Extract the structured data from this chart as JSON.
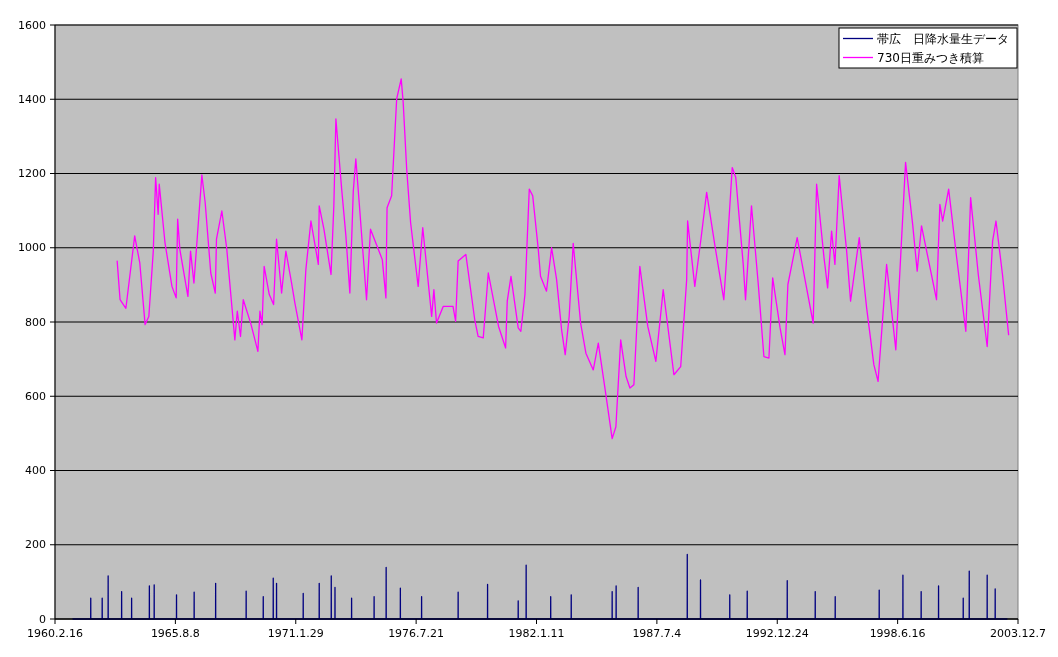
{
  "chart_data": {
    "type": "line",
    "xlim": [
      "1960-02-16",
      "2003-12-07"
    ],
    "xticks": [
      {
        "value": "1960-02-16",
        "label": "1960.2.16"
      },
      {
        "value": "1965-08-08",
        "label": "1965.8.8"
      },
      {
        "value": "1971-01-29",
        "label": "1971.1.29"
      },
      {
        "value": "1976-07-21",
        "label": "1976.7.21"
      },
      {
        "value": "1982-01-11",
        "label": "1982.1.11"
      },
      {
        "value": "1987-07-04",
        "label": "1987.7.4"
      },
      {
        "value": "1992-12-24",
        "label": "1992.12.24"
      },
      {
        "value": "1998-06-16",
        "label": "1998.6.16"
      },
      {
        "value": "2003-12-07",
        "label": "2003.12.7"
      }
    ],
    "ylim": [
      0,
      1600
    ],
    "yticks": [
      0,
      200,
      400,
      600,
      800,
      1000,
      1200,
      1400,
      1600
    ],
    "grid": "y",
    "legend": "top right",
    "series": [
      {
        "name": "帯広　日降水量生データ",
        "color": "#000080",
        "x": [
          "1960-12-11",
          "1961-10-01",
          "1961-10-02",
          "1961-10-03",
          "1962-04-09",
          "1962-04-10",
          "1962-04-11",
          "1962-07-17",
          "1962-07-18",
          "1962-07-19",
          "1963-02-26",
          "1963-02-27",
          "1963-02-28",
          "1963-08-11",
          "1963-08-12",
          "1963-08-13",
          "1964-06-01",
          "1964-06-02",
          "1964-06-03",
          "1964-08-20",
          "1964-08-21",
          "1964-08-22",
          "1965-08-26",
          "1965-08-27",
          "1965-08-28",
          "1966-06-15",
          "1966-06-16",
          "1966-06-17",
          "1967-06-07",
          "1967-06-08",
          "1967-06-09",
          "1968-10-26",
          "1968-10-27",
          "1968-10-28",
          "1969-08-06",
          "1969-08-07",
          "1969-08-08",
          "1970-01-19",
          "1970-01-20",
          "1970-01-21",
          "1970-03-15",
          "1970-03-16",
          "1970-03-17",
          "1971-06-01",
          "1971-06-02",
          "1971-06-03",
          "1972-02-22",
          "1972-02-23",
          "1972-02-24",
          "1972-09-09",
          "1972-09-10",
          "1972-09-11",
          "1972-11-10",
          "1972-11-11",
          "1972-11-12",
          "1973-08-13",
          "1973-08-14",
          "1973-08-15",
          "1974-08-22",
          "1974-08-23",
          "1974-08-24",
          "1975-03-10",
          "1975-03-11",
          "1975-03-12",
          "1975-11-01",
          "1975-11-02",
          "1975-11-03",
          "1976-10-19",
          "1976-10-20",
          "1976-10-21",
          "1978-06-18",
          "1978-06-19",
          "1978-06-20",
          "1979-10-20",
          "1979-10-21",
          "1979-10-22",
          "1981-03-12",
          "1981-03-13",
          "1981-03-14",
          "1981-07-22",
          "1981-07-23",
          "1981-07-24",
          "1982-09-03",
          "1982-09-04",
          "1982-09-05",
          "1983-08-10",
          "1983-08-11",
          "1983-08-12",
          "1985-06-20",
          "1985-06-21",
          "1985-06-22",
          "1985-08-25",
          "1985-08-26",
          "1985-08-27",
          "1986-08-26",
          "1986-08-27",
          "1986-08-28",
          "1988-11-19",
          "1988-11-20",
          "1988-11-21",
          "1989-06-27",
          "1989-06-28",
          "1989-06-29",
          "1990-10-26",
          "1990-10-27",
          "1990-10-28",
          "1991-08-12",
          "1991-08-13",
          "1991-08-14",
          "1993-06-07",
          "1993-06-08",
          "1993-06-09",
          "1994-09-15",
          "1994-09-16",
          "1994-09-17",
          "1995-08-13",
          "1995-08-14",
          "1995-08-15",
          "1997-08-13",
          "1997-08-14",
          "1997-08-15",
          "1998-09-11",
          "1998-09-12",
          "1998-09-13",
          "1999-07-11",
          "1999-07-12",
          "1999-07-13",
          "2000-04-25",
          "2000-04-26",
          "2000-04-27",
          "2001-06-09",
          "2001-06-10",
          "2001-06-11",
          "2001-09-17",
          "2001-09-18",
          "2001-09-19",
          "2002-07-12",
          "2002-07-13",
          "2002-07-14",
          "2002-11-22",
          "2002-11-23",
          "2002-11-24",
          "2003-06-06"
        ],
        "values": [
          0,
          0,
          56,
          0,
          0,
          56,
          0,
          0,
          116,
          0,
          0,
          74,
          0,
          0,
          56,
          0,
          0,
          89,
          0,
          0,
          92,
          0,
          0,
          65,
          0,
          0,
          72,
          0,
          0,
          96,
          0,
          0,
          75,
          0,
          0,
          60,
          0,
          0,
          110,
          0,
          0,
          96,
          0,
          0,
          69,
          0,
          0,
          96,
          0,
          0,
          116,
          0,
          0,
          85,
          0,
          0,
          56,
          0,
          0,
          60,
          0,
          0,
          139,
          0,
          0,
          83,
          0,
          0,
          60,
          0,
          0,
          72,
          0,
          0,
          93,
          0,
          0,
          49,
          0,
          0,
          145,
          0,
          0,
          60,
          0,
          0,
          65,
          0,
          0,
          74,
          0,
          0,
          89,
          0,
          0,
          85,
          0,
          0,
          174,
          0,
          0,
          105,
          0,
          0,
          65,
          0,
          0,
          75,
          0,
          0,
          103,
          0,
          0,
          74,
          0,
          0,
          60,
          0,
          0,
          78,
          0,
          0,
          118,
          0,
          0,
          74,
          0,
          0,
          89,
          0,
          0,
          56,
          0,
          0,
          129,
          0,
          0,
          118,
          0,
          0,
          81,
          0,
          0
        ]
      },
      {
        "name": "730日重みつき積算",
        "color": "#ff00ff",
        "x": [
          "1962-12-15",
          "1963-02-01",
          "1963-05-09",
          "1963-10-02",
          "1963-12-26",
          "1964-03-23",
          "1964-05-24",
          "1964-08-06",
          "1964-09-14",
          "1964-10-26",
          "1964-11-13",
          "1965-02-16",
          "1965-06-12",
          "1965-08-21",
          "1965-09-15",
          "1965-10-22",
          "1966-03-04",
          "1966-04-17",
          "1966-06-12",
          "1966-10-22",
          "1966-12-16",
          "1967-03-19",
          "1967-06-02",
          "1967-06-22",
          "1967-09-19",
          "1967-12-08",
          "1968-04-22",
          "1968-06-02",
          "1968-07-25",
          "1968-09-09",
          "1969-01-10",
          "1969-05-10",
          "1969-06-13",
          "1969-07-19",
          "1969-08-22",
          "1969-11-15",
          "1970-01-26",
          "1970-03-16",
          "1970-06-08",
          "1970-08-18",
          "1970-11-21",
          "1971-01-15",
          "1971-05-11",
          "1971-07-16",
          "1971-10-08",
          "1972-02-08",
          "1972-02-23",
          "1972-05-11",
          "1972-09-06",
          "1972-10-23",
          "1972-11-26",
          "1973-03-02",
          "1973-05-11",
          "1973-07-16",
          "1973-09-11",
          "1973-10-23",
          "1973-12-18",
          "1974-04-19",
          "1974-06-24",
          "1975-01-06",
          "1975-03-07",
          "1975-03-26",
          "1975-06-10",
          "1975-09-02",
          "1975-11-16",
          "1975-12-19",
          "1976-02-15",
          "1976-04-20",
          "1976-08-24",
          "1976-11-08",
          "1977-04-05",
          "1977-05-12",
          "1977-06-25",
          "1977-10-14",
          "1978-03-26",
          "1978-05-08",
          "1978-06-19",
          "1978-10-25",
          "1979-03-22",
          "1979-05-17",
          "1979-08-10",
          "1979-11-02",
          "1980-04-21",
          "1980-08-16",
          "1980-09-12",
          "1980-11-13",
          "1981-03-13",
          "1981-04-26",
          "1981-07-03",
          "1981-09-13",
          "1981-11-09",
          "1982-02-10",
          "1982-03-19",
          "1982-06-26",
          "1982-09-19",
          "1982-12-11",
          "1983-03-04",
          "1983-05-03",
          "1983-07-08",
          "1983-09-13",
          "1984-01-14",
          "1984-04-11",
          "1984-08-11",
          "1984-11-03",
          "1985-02-21",
          "1985-06-21",
          "1985-08-22",
          "1985-11-10",
          "1986-02-07",
          "1986-04-12",
          "1986-06-17",
          "1986-09-24",
          "1987-02-03",
          "1987-06-17",
          "1987-10-17",
          "1988-04-12",
          "1988-08-03",
          "1988-11-10",
          "1988-11-26",
          "1989-03-25",
          "1989-07-05",
          "1989-10-08",
          "1990-02-23",
          "1990-07-20",
          "1990-08-23",
          "1990-12-07",
          "1991-02-04",
          "1991-06-08",
          "1991-07-16",
          "1991-10-23",
          "1992-02-13",
          "1992-05-16",
          "1992-08-08",
          "1992-10-09",
          "1993-02-09",
          "1993-05-01",
          "1993-06-19",
          "1993-11-20",
          "1994-08-13",
          "1994-10-09",
          "1995-02-09",
          "1995-04-10",
          "1995-06-15",
          "1995-08-09",
          "1995-10-19",
          "1996-02-20",
          "1996-04-25",
          "1996-09-16",
          "1997-01-17",
          "1997-05-17",
          "1997-07-26",
          "1997-12-15",
          "1998-05-17",
          "1998-10-26",
          "1999-02-21",
          "1999-05-07",
          "1999-07-18",
          "2000-03-23",
          "2000-05-18",
          "2000-07-03",
          "2000-10-11",
          "2001-02-21",
          "2001-07-23",
          "2001-10-11",
          "2002-02-15",
          "2002-07-13",
          "2002-10-11",
          "2002-12-06",
          "2003-03-24",
          "2003-07-04"
        ],
        "values": [
          964,
          860,
          837,
          1032,
          959,
          793,
          815,
          991,
          1189,
          1090,
          1171,
          1014,
          896,
          865,
          1077,
          995,
          869,
          991,
          905,
          1196,
          1122,
          932,
          878,
          1023,
          1099,
          1000,
          752,
          829,
          761,
          860,
          797,
          721,
          829,
          793,
          950,
          874,
          847,
          1023,
          878,
          991,
          905,
          851,
          752,
          941,
          1072,
          955,
          1113,
          1050,
          928,
          1113,
          1347,
          1158,
          1032,
          878,
          1153,
          1239,
          1122,
          860,
          1050,
          968,
          865,
          1108,
          1140,
          1401,
          1455,
          1392,
          1212,
          1068,
          896,
          1054,
          815,
          887,
          797,
          842,
          842,
          802,
          964,
          982,
          806,
          761,
          757,
          932,
          788,
          730,
          856,
          923,
          784,
          775,
          874,
          1158,
          1140,
          995,
          923,
          883,
          1000,
          914,
          779,
          712,
          815,
          1012,
          797,
          716,
          671,
          743,
          622,
          486,
          518,
          752,
          653,
          622,
          631,
          950,
          788,
          694,
          887,
          658,
          680,
          914,
          1072,
          896,
          1023,
          1149,
          1005,
          860,
          941,
          1216,
          1189,
          955,
          860,
          1113,
          901,
          707,
          703,
          919,
          784,
          712,
          901,
          1027,
          797,
          1171,
          973,
          892,
          1045,
          955,
          1194,
          991,
          856,
          1027,
          838,
          685,
          640,
          955,
          725,
          1230,
          1063,
          937,
          1059,
          860,
          1117,
          1072,
          1158,
          973,
          775,
          1135,
          928,
          734,
          1018,
          1072,
          928,
          766
        ]
      }
    ]
  }
}
